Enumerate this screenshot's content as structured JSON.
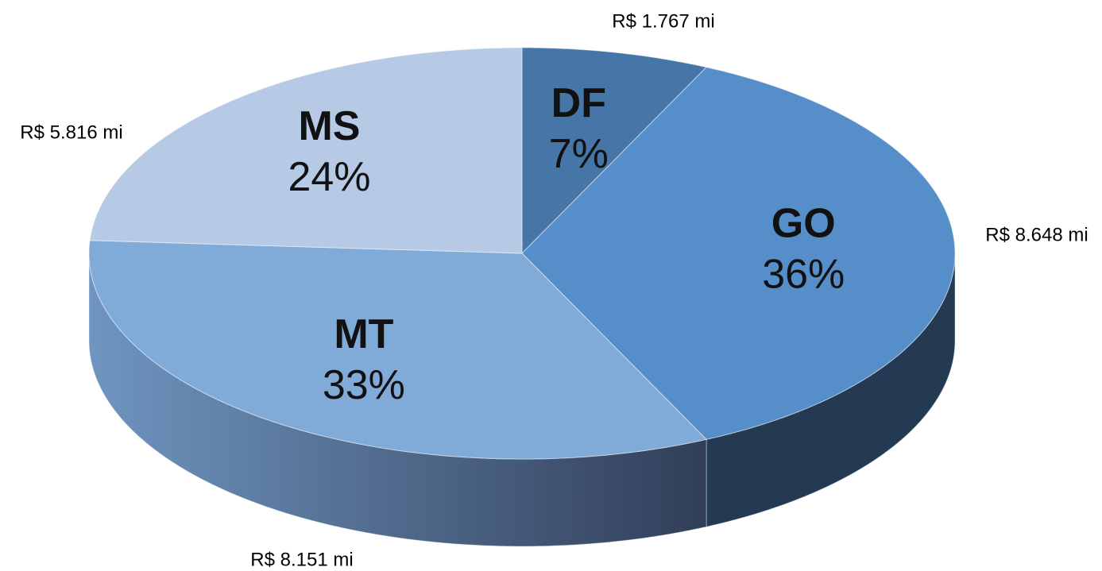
{
  "chart_data": {
    "type": "pie",
    "categories": [
      "DF",
      "GO",
      "MT",
      "MS"
    ],
    "values": [
      7,
      36,
      33,
      24
    ],
    "value_labels": [
      "7%",
      "36%",
      "33%",
      "24%"
    ],
    "amount_labels": [
      "R$ 1.767 mi",
      "R$ 8.648 mi",
      "R$ 8.151 mi",
      "R$ 5.816 mi"
    ],
    "colors": [
      "#4676a8",
      "#558ec8",
      "#80aad8",
      "#b6cae6"
    ]
  }
}
